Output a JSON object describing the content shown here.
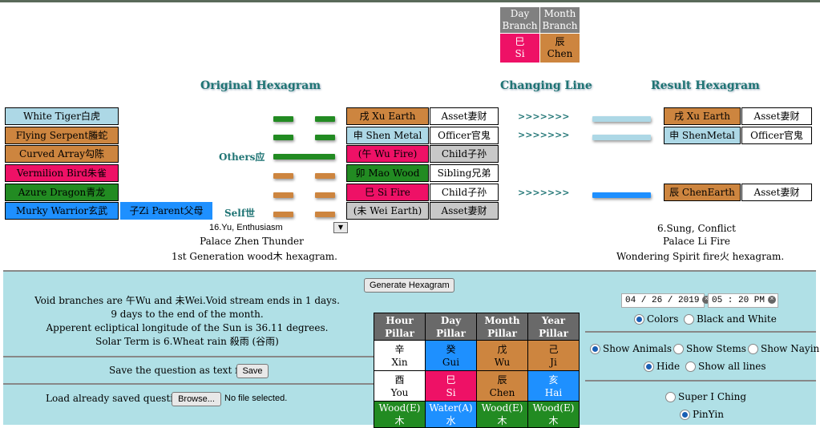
{
  "branch_box": {
    "day_head": "Day Branch",
    "month_head": "Month Branch",
    "day_char": "巳",
    "day_pinyin": "Si",
    "month_char": "辰",
    "month_pinyin": "Chen"
  },
  "headings": {
    "original": "Original Hexagram",
    "changing": "Changing Line",
    "result": "Result Hexagram"
  },
  "spirits": [
    "White Tiger白虎",
    "Flying Serpent螣蛇",
    "Curved Array勾陈",
    "Vermilion Bird朱雀",
    "Azure Dragon青龙",
    "Murky Warrior玄武"
  ],
  "hidden_line": "子Zi Parent父母",
  "tags": {
    "others": "Others应",
    "self": "Self世"
  },
  "original_lines": [
    {
      "branch": "戌 Xu Earth",
      "relation": "Asset妻财"
    },
    {
      "branch": "申 Shen Metal",
      "relation": "Officer官鬼"
    },
    {
      "branch": "(午 Wu Fire)",
      "relation": "Child子孙"
    },
    {
      "branch": "卯 Mao Wood",
      "relation": "Sibling兄弟"
    },
    {
      "branch": "巳 Si Fire",
      "relation": "Child子孙"
    },
    {
      "branch": "(未 Wei Earth)",
      "relation": "Asset妻财"
    }
  ],
  "arrows": [
    ">>>>>>>",
    ">>>>>>>",
    ">>>>>>>"
  ],
  "result_lines": [
    {
      "branch": "戌 Xu Earth",
      "relation": "Asset妻财"
    },
    {
      "branch": "申 ShenMetal",
      "relation": "Officer官鬼"
    },
    {
      "branch": "辰 ChenEarth",
      "relation": "Asset妻财"
    }
  ],
  "original_info": {
    "select_value": "16.Yu, Enthusiasm",
    "palace": "Palace Zhen Thunder",
    "generation": "1st Generation wood木 hexagram."
  },
  "result_info": {
    "name": "6.Sung, Conflict",
    "palace": "Palace Li Fire",
    "generation": "Wondering Spirit fire火 hexagram."
  },
  "panel": {
    "generate": "Generate Hexagram",
    "void_text": "Void branches are 午Wu and 未Wei.Void stream ends in 1 days.",
    "month_end": "9 days to the end of the month.",
    "longitude": "Apperent ecliptical longitude of the Sun is 36.11 degrees.",
    "solar_term": "Solar Term is 6.Wheat rain 殺雨 (谷雨)",
    "save_label": "Save the question as text file.",
    "save_button": "Save",
    "load_label": "Load already saved question.",
    "browse_button": "Browse...",
    "no_file": "No file selected.",
    "date_value": "04 / 26 / 2019",
    "time_value": "05 : 20  PM"
  },
  "pillars": {
    "heads": [
      "Hour Pillar",
      "Day Pillar",
      "Month Pillar",
      "Year Pillar"
    ],
    "stems": [
      {
        "char": "辛",
        "pinyin": "Xin"
      },
      {
        "char": "癸",
        "pinyin": "Gui"
      },
      {
        "char": "戊",
        "pinyin": "Wu"
      },
      {
        "char": "己",
        "pinyin": "Ji"
      }
    ],
    "branches": [
      {
        "char": "酉",
        "pinyin": "You"
      },
      {
        "char": "巳",
        "pinyin": "Si"
      },
      {
        "char": "辰",
        "pinyin": "Chen"
      },
      {
        "char": "亥",
        "pinyin": "Hai"
      }
    ],
    "elements": [
      "Wood(E)木",
      "Water(A)水",
      "Wood(E)木",
      "Wood(E)木"
    ]
  },
  "options": {
    "colors": "Colors",
    "bw": "Black and White",
    "show_animals": "Show Animals",
    "show_stems": "Show Stems",
    "show_nayin": "Show Nayin",
    "hide": "Hide",
    "show_all": "Show all lines",
    "super_iching": "Super I Ching",
    "pinyin": "PinYin"
  },
  "colors": {
    "light_blue": "#add8e6",
    "brown": "#cd853f",
    "red": "#ee1166",
    "green": "#228b22",
    "blue": "#1e90ff",
    "gray": "#c8c8c8",
    "panel": "#b0e0e6"
  }
}
